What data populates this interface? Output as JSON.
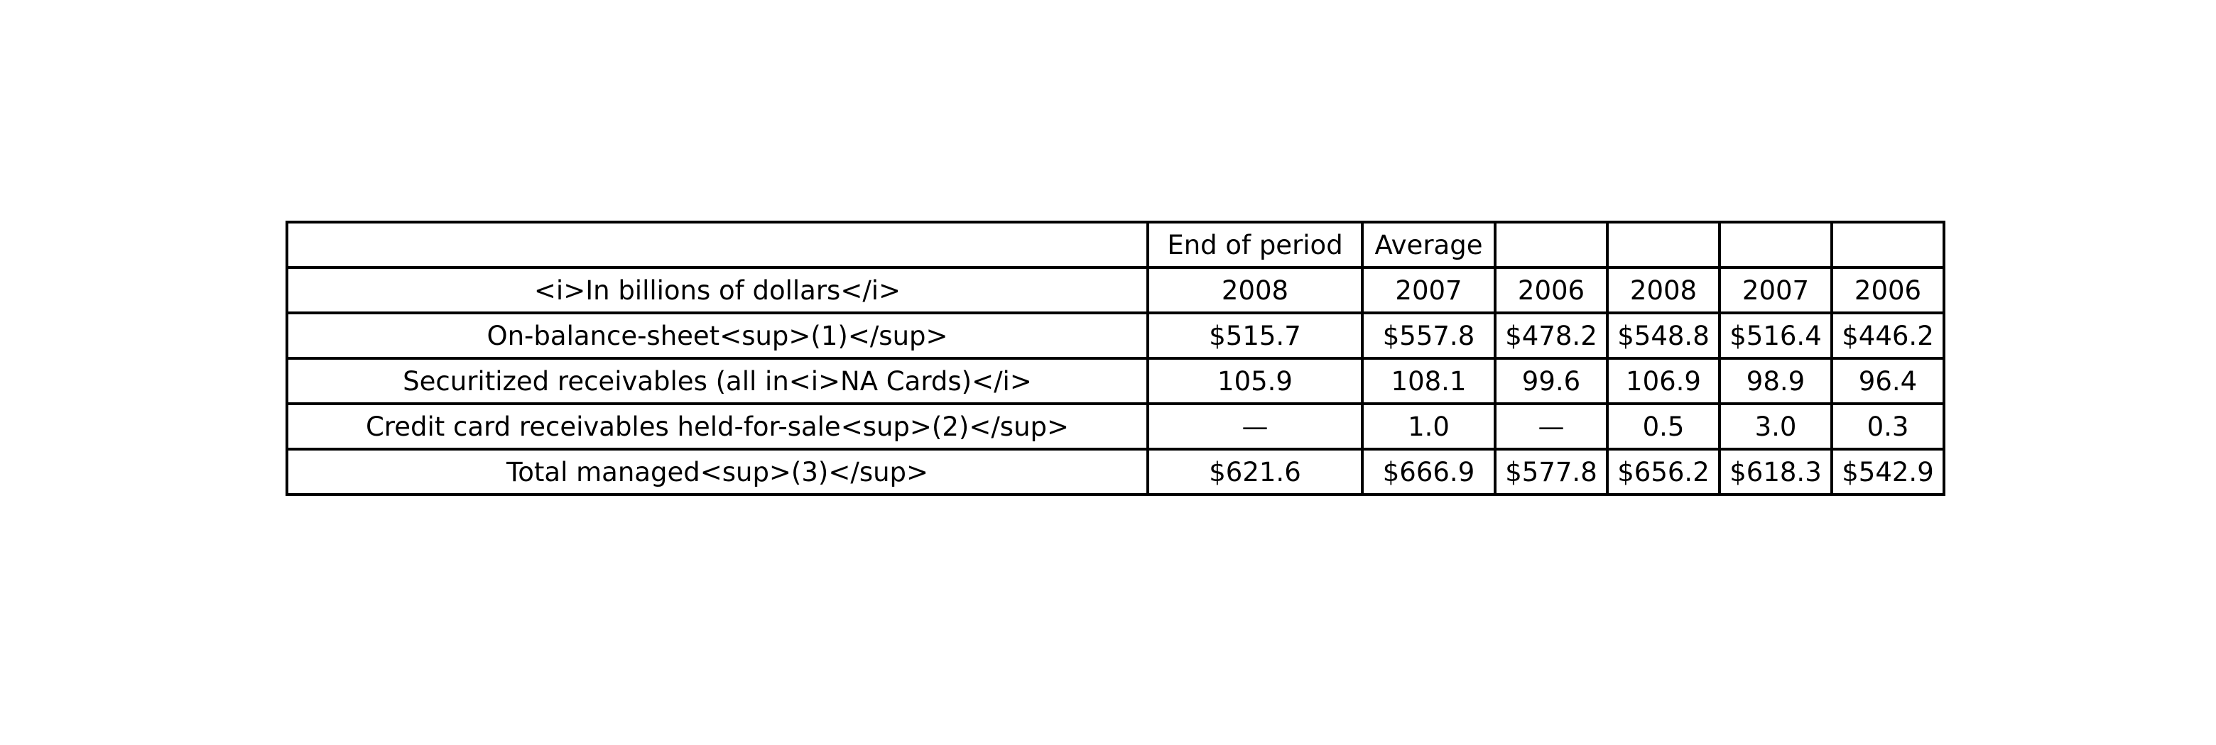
{
  "chart_data": {
    "type": "table",
    "header": [
      "",
      "End of period",
      "Average",
      "",
      "",
      "",
      ""
    ],
    "rows": [
      [
        "<i>In billions of dollars</i>",
        "2008",
        "2007",
        "2006",
        "2008",
        "2007",
        "2006"
      ],
      [
        "On-balance-sheet<sup>(1)</sup>",
        "$515.7",
        "$557.8",
        "$478.2",
        "$548.8",
        "$516.4",
        "$446.2"
      ],
      [
        "Securitized receivables (all in<i>NA Cards)</i>",
        "105.9",
        "108.1",
        "99.6",
        "106.9",
        "98.9",
        "96.4"
      ],
      [
        "Credit card receivables held-for-sale<sup>(2)</sup>",
        "—",
        "1.0",
        "—",
        "0.5",
        "3.0",
        "0.3"
      ],
      [
        "Total managed<sup>(3)</sup>",
        "$621.6",
        "$666.9",
        "$577.8",
        "$656.2",
        "$618.3",
        "$542.9"
      ]
    ]
  }
}
